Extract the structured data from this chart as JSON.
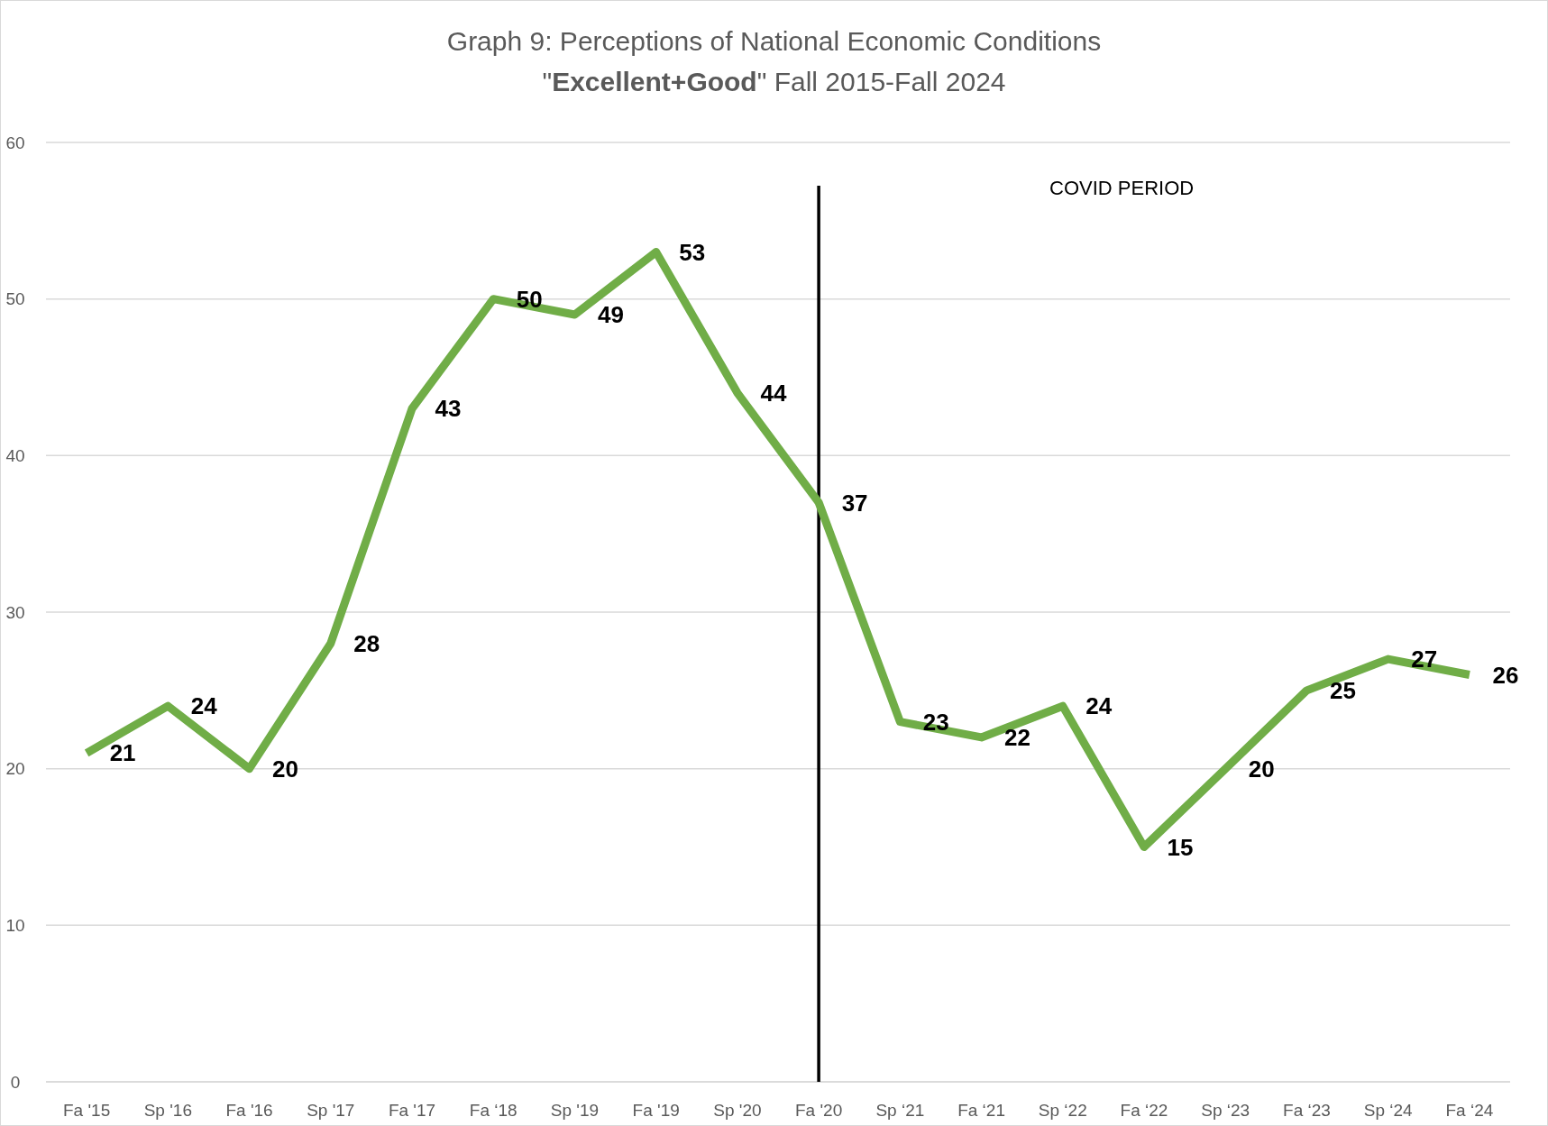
{
  "chart_data": {
    "type": "line",
    "title": "Graph 9: Perceptions of National Economic Conditions",
    "subtitle": "\"Excellent+Good\" Fall 2015-Fall 2024",
    "categories": [
      "Fa '15",
      "Sp '16",
      "Fa '16",
      "Sp '17",
      "Fa '17",
      "Fa ‘18",
      "Sp '19",
      "Fa '19",
      "Sp '20",
      "Fa '20",
      "Sp ‘21",
      "Fa ‘21",
      "Sp ‘22",
      "Fa ‘22",
      "Sp ‘23",
      "Fa ‘23",
      "Sp ‘24",
      "Fa ‘24"
    ],
    "series": [
      {
        "color": "#70ad47",
        "values": [
          21,
          24,
          20,
          28,
          43,
          50,
          49,
          53,
          44,
          37,
          23,
          22,
          24,
          15,
          20,
          25,
          27,
          26
        ]
      }
    ],
    "ylim": [
      0,
      60
    ],
    "yticks": [
      0,
      10,
      20,
      30,
      40,
      50,
      60
    ],
    "grid": "y",
    "data_labels": true,
    "ref_lines": [
      {
        "axis": "x",
        "value": "Fa '20",
        "label": "COVID PERIOD",
        "color": "#000000"
      }
    ]
  }
}
